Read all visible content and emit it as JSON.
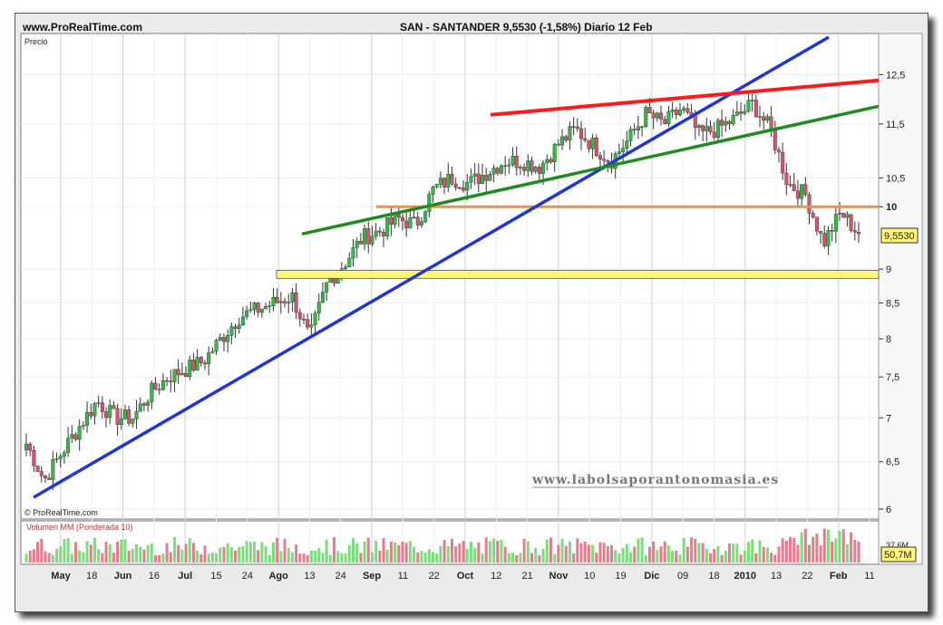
{
  "header": {
    "site": "www.ProRealTime.com",
    "ticker": "SAN - SANTANDER    9,5530 (-1,58%)    Diario  12 Feb"
  },
  "price_panel": {
    "label": "Precio",
    "last_price_badge": "9,5530",
    "copyright": "© ProRealTime.com",
    "watermark": "www.labolsaporantonomasia.es"
  },
  "volume_panel": {
    "label": "Volumen MM (Ponderada 10)",
    "tick_label": "37,6M",
    "last_volume_badge": "50,7M"
  },
  "colors": {
    "up_candle": "#39b54a",
    "down_candle": "#d2566b",
    "blue_trendline": "#1f35d6",
    "red_line": "#ff1a1a",
    "green_line": "#1e8c1e",
    "orange_line": "#ff8c3c",
    "yellow_zone": "#fff67a"
  },
  "chart_data": {
    "type": "candlestick",
    "title": "SAN - SANTANDER",
    "yticks": [
      6,
      6.5,
      7,
      7.5,
      8,
      8.5,
      9,
      10,
      10.5,
      11.5,
      12.5
    ],
    "ytick_labels": [
      "6",
      "6,5",
      "7",
      "7,5",
      "8",
      "8,5",
      "9",
      "10",
      "10,5",
      "11,5",
      "12,5"
    ],
    "ylim": [
      5.9,
      13.4
    ],
    "scale": "log",
    "xtick_labels": [
      "May",
      "18",
      "Jun",
      "16",
      "Jul",
      "15",
      "24",
      "Ago",
      "13",
      "24",
      "Sep",
      "11",
      "22",
      "Oct",
      "12",
      "21",
      "Nov",
      "10",
      "19",
      "Dic",
      "09",
      "18",
      "2010",
      "13",
      "22",
      "Feb",
      "11"
    ],
    "xtick_bold": [
      "May",
      "Jun",
      "Jul",
      "Ago",
      "Sep",
      "Oct",
      "Nov",
      "Dic",
      "2010",
      "Feb"
    ],
    "close_series_approx": [
      6.7,
      6.3,
      6.6,
      6.9,
      7.2,
      7.0,
      7.0,
      7.3,
      7.5,
      7.6,
      7.7,
      8.0,
      8.3,
      8.4,
      8.5,
      8.6,
      8.0,
      8.8,
      9.1,
      9.5,
      9.6,
      9.8,
      9.7,
      10.3,
      10.5,
      10.4,
      10.6,
      10.8,
      10.8,
      10.7,
      11.1,
      11.4,
      11.1,
      10.8,
      11.2,
      11.7,
      11.5,
      11.8,
      11.3,
      11.4,
      11.6,
      11.9,
      11.4,
      10.4,
      10.2,
      9.4,
      9.9,
      9.55
    ],
    "last_close": 9.553,
    "trendlines": [
      {
        "name": "blue-support-trendline",
        "from": [
          "May",
          6.12
        ],
        "to": [
          "Feb",
          13.2
        ]
      },
      {
        "name": "red-resistance-line",
        "from": [
          "Oct",
          11.68
        ],
        "to": [
          "Feb",
          12.38
        ]
      },
      {
        "name": "green-trendline",
        "from": [
          "24",
          9.55
        ],
        "to": [
          "Feb",
          11.85
        ]
      },
      {
        "name": "orange-level-10",
        "value": 10.0
      },
      {
        "name": "yellow-support-zone",
        "range": [
          8.86,
          8.98
        ]
      }
    ]
  }
}
